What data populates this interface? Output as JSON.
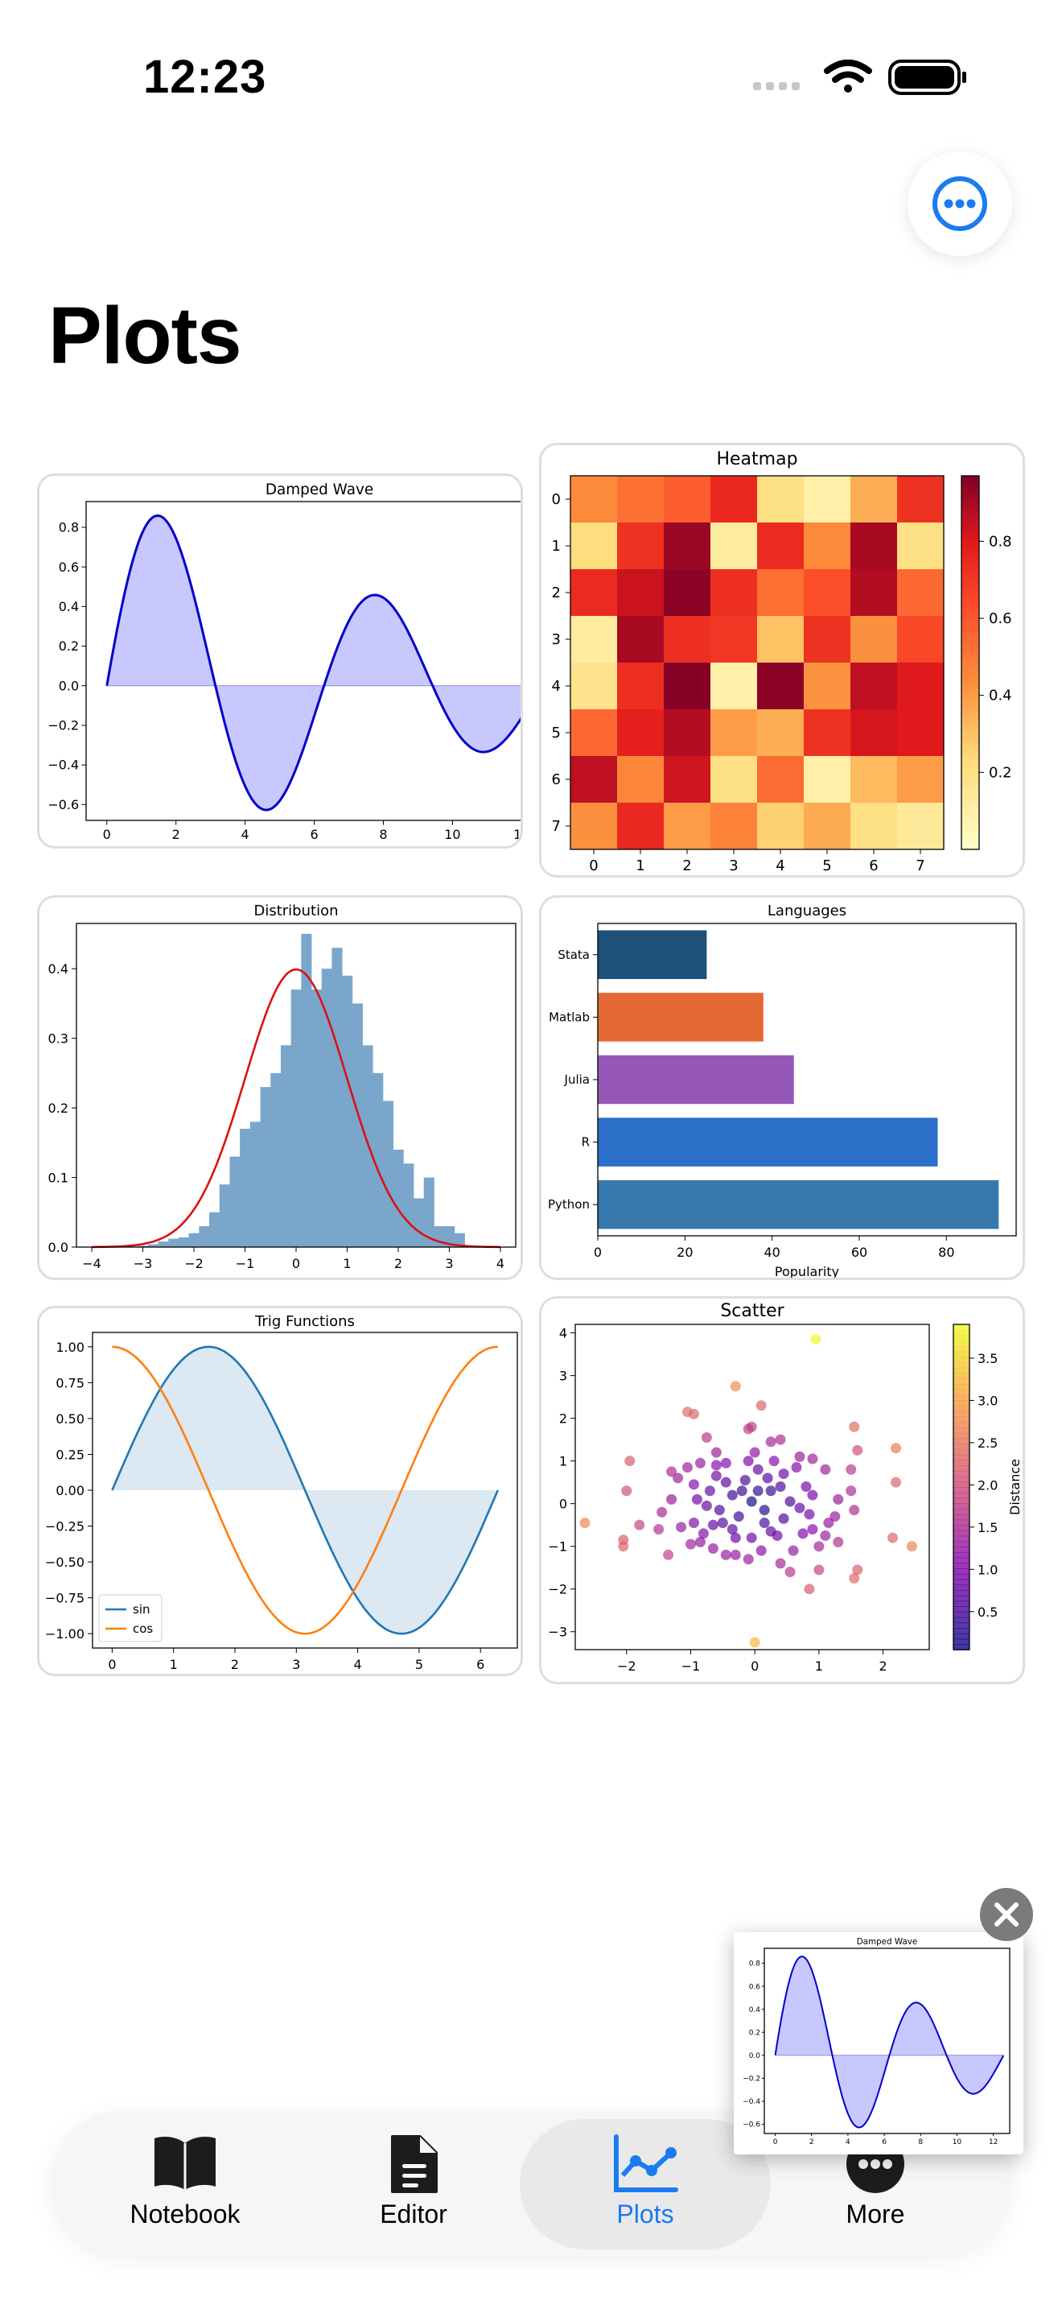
{
  "status_bar": {
    "time": "12:23"
  },
  "page": {
    "title": "Plots"
  },
  "tab_bar": {
    "items": [
      {
        "label": "Notebook",
        "icon": "book-icon",
        "active": false
      },
      {
        "label": "Editor",
        "icon": "document-icon",
        "active": false
      },
      {
        "label": "Plots",
        "icon": "chart-line-icon",
        "active": true
      },
      {
        "label": "More",
        "icon": "ellipsis-circle-icon",
        "active": false
      }
    ],
    "accent_color": "#1a7cf0"
  },
  "chart_data": [
    {
      "id": "damped",
      "type": "area",
      "title": "Damped Wave",
      "function": "sin(x)*exp(-0.1x)",
      "xlim": [
        -0.6,
        12.9
      ],
      "ylim": [
        -0.68,
        0.93
      ],
      "xticks": [
        0,
        2,
        4,
        6,
        8,
        10,
        12
      ],
      "yticks": [
        -0.6,
        -0.4,
        -0.2,
        0.0,
        0.2,
        0.4,
        0.6,
        0.8
      ],
      "ytick_labels": [
        "−0.6",
        "−0.4",
        "−0.2",
        "0.0",
        "0.2",
        "0.4",
        "0.6",
        "0.8"
      ],
      "line_color": "#0000cc",
      "fill_color": "#c8c8ff"
    },
    {
      "id": "heatmap",
      "type": "heatmap",
      "title": "Heatmap",
      "xticks": [
        "0",
        "1",
        "2",
        "3",
        "4",
        "5",
        "6",
        "7"
      ],
      "yticks": [
        "0",
        "1",
        "2",
        "3",
        "4",
        "5",
        "6",
        "7"
      ],
      "colorbar_ticks": [
        "0.2",
        "0.4",
        "0.6",
        "0.8"
      ],
      "colorbar_values": [
        0.2,
        0.4,
        0.6,
        0.8
      ],
      "vmin": 0.0,
      "vmax": 0.97,
      "values": [
        [
          0.45,
          0.52,
          0.58,
          0.75,
          0.2,
          0.1,
          0.35,
          0.72
        ],
        [
          0.22,
          0.72,
          0.92,
          0.12,
          0.74,
          0.45,
          0.9,
          0.2
        ],
        [
          0.74,
          0.84,
          0.95,
          0.73,
          0.53,
          0.63,
          0.88,
          0.55
        ],
        [
          0.12,
          0.9,
          0.73,
          0.7,
          0.3,
          0.72,
          0.43,
          0.65
        ],
        [
          0.18,
          0.73,
          0.96,
          0.1,
          0.95,
          0.42,
          0.86,
          0.8
        ],
        [
          0.55,
          0.78,
          0.88,
          0.4,
          0.35,
          0.72,
          0.82,
          0.8
        ],
        [
          0.86,
          0.46,
          0.83,
          0.2,
          0.54,
          0.1,
          0.32,
          0.4
        ],
        [
          0.43,
          0.75,
          0.4,
          0.47,
          0.26,
          0.36,
          0.2,
          0.14
        ]
      ]
    },
    {
      "id": "distribution",
      "type": "bar",
      "title": "Distribution",
      "xlim": [
        -4.3,
        4.3
      ],
      "ylim": [
        0,
        0.465
      ],
      "xticks": [
        -4,
        -3,
        -2,
        -1,
        0,
        1,
        2,
        3,
        4
      ],
      "xtick_labels": [
        "−4",
        "−3",
        "−2",
        "−1",
        "0",
        "1",
        "2",
        "3",
        "4"
      ],
      "yticks": [
        0.0,
        0.1,
        0.2,
        0.3,
        0.4
      ],
      "bin_start": -3.1,
      "bin_width": 0.2,
      "values": [
        0.002,
        0.004,
        0.008,
        0.012,
        0.014,
        0.02,
        0.03,
        0.05,
        0.09,
        0.13,
        0.17,
        0.18,
        0.23,
        0.25,
        0.29,
        0.37,
        0.45,
        0.37,
        0.4,
        0.43,
        0.39,
        0.35,
        0.29,
        0.25,
        0.21,
        0.14,
        0.12,
        0.07,
        0.1,
        0.03,
        0.03,
        0.02
      ],
      "hist_color": "#7aa6cb",
      "curve": {
        "type": "normal_pdf",
        "mean": 0,
        "std": 1,
        "color": "#dd1111"
      }
    },
    {
      "id": "languages",
      "type": "bar",
      "title": "Languages",
      "orientation": "horizontal",
      "xlabel": "Popularity",
      "xlim": [
        0,
        96
      ],
      "xticks": [
        0,
        20,
        40,
        60,
        80
      ],
      "categories": [
        "Python",
        "R",
        "Julia",
        "Matlab",
        "Stata"
      ],
      "values": [
        92,
        78,
        45,
        38,
        25
      ],
      "colors": [
        "#3778ad",
        "#2b6fc9",
        "#9558b7",
        "#e46a35",
        "#1e5179"
      ]
    },
    {
      "id": "trig",
      "type": "line",
      "title": "Trig Functions",
      "xlim": [
        -0.32,
        6.6
      ],
      "ylim": [
        -1.1,
        1.1
      ],
      "xticks": [
        0,
        1,
        2,
        3,
        4,
        5,
        6
      ],
      "yticks": [
        -1.0,
        -0.75,
        -0.5,
        -0.25,
        0.0,
        0.25,
        0.5,
        0.75,
        1.0
      ],
      "ytick_labels": [
        "−1.00",
        "−0.75",
        "−0.50",
        "−0.25",
        "0.00",
        "0.25",
        "0.50",
        "0.75",
        "1.00"
      ],
      "series": [
        {
          "name": "sin",
          "function": "sin",
          "color": "#1f77b4",
          "fill": "#dce8f2"
        },
        {
          "name": "cos",
          "function": "cos",
          "color": "#ff7f0e"
        }
      ],
      "legend_position": "lower-left"
    },
    {
      "id": "scatter",
      "type": "scatter",
      "title": "Scatter",
      "colorbar_label": "Distance",
      "xlim": [
        -2.8,
        2.72
      ],
      "ylim": [
        -3.42,
        4.2
      ],
      "xticks": [
        -2,
        -1,
        0,
        1,
        2
      ],
      "xtick_labels": [
        "−2",
        "−1",
        "0",
        "1",
        "2"
      ],
      "yticks": [
        -3,
        -2,
        -1,
        0,
        1,
        2,
        3,
        4
      ],
      "ytick_labels": [
        "−3",
        "−2",
        "−1",
        "0",
        "1",
        "2",
        "3",
        "4"
      ],
      "colorbar_ticks": [
        "0.5",
        "1.0",
        "1.5",
        "2.0",
        "2.5",
        "3.0",
        "3.5"
      ],
      "colorbar_values": [
        0.5,
        1.0,
        1.5,
        2.0,
        2.5,
        3.0,
        3.5
      ],
      "vmin": 0.05,
      "vmax": 3.9,
      "points": [
        [
          0.95,
          3.85
        ],
        [
          0.0,
          -3.25
        ],
        [
          -2.65,
          -0.45
        ],
        [
          2.45,
          -1.0
        ],
        [
          2.15,
          -0.8
        ],
        [
          -1.95,
          1.0
        ],
        [
          -2.05,
          -0.85
        ],
        [
          -2.05,
          -1.0
        ],
        [
          -1.8,
          -0.5
        ],
        [
          -2.0,
          0.3
        ],
        [
          1.55,
          1.8
        ],
        [
          1.6,
          1.25
        ],
        [
          1.5,
          0.8
        ],
        [
          2.2,
          1.3
        ],
        [
          2.2,
          0.5
        ],
        [
          1.55,
          -0.15
        ],
        [
          1.6,
          -1.55
        ],
        [
          1.55,
          -1.75
        ],
        [
          1.0,
          -1.55
        ],
        [
          0.85,
          -2.0
        ],
        [
          1.0,
          -1.0
        ],
        [
          1.25,
          -0.3
        ],
        [
          1.5,
          0.3
        ],
        [
          0.1,
          2.3
        ],
        [
          -0.3,
          2.75
        ],
        [
          -0.95,
          2.1
        ],
        [
          -1.05,
          2.15
        ],
        [
          -0.1,
          1.75
        ],
        [
          -0.05,
          1.8
        ],
        [
          0.4,
          1.5
        ],
        [
          0.7,
          1.1
        ],
        [
          -0.75,
          1.55
        ],
        [
          -0.6,
          1.2
        ],
        [
          -1.3,
          0.75
        ],
        [
          -1.2,
          0.6
        ],
        [
          -1.05,
          0.85
        ],
        [
          -0.85,
          0.95
        ],
        [
          -0.6,
          0.9
        ],
        [
          -0.45,
          0.5
        ],
        [
          -0.7,
          0.3
        ],
        [
          -0.95,
          0.45
        ],
        [
          -1.3,
          0.1
        ],
        [
          -1.45,
          -0.2
        ],
        [
          -1.5,
          -0.6
        ],
        [
          -1.35,
          -1.2
        ],
        [
          -0.85,
          -0.9
        ],
        [
          -0.95,
          -0.45
        ],
        [
          -0.65,
          -0.5
        ],
        [
          -0.55,
          -0.15
        ],
        [
          -0.35,
          0.2
        ],
        [
          -0.15,
          0.55
        ],
        [
          0.05,
          0.8
        ],
        [
          0.25,
          0.3
        ],
        [
          0.45,
          0.7
        ],
        [
          0.65,
          0.85
        ],
        [
          0.8,
          0.4
        ],
        [
          0.9,
          0.2
        ],
        [
          0.7,
          -0.1
        ],
        [
          0.45,
          -0.35
        ],
        [
          0.25,
          -0.65
        ],
        [
          -0.05,
          -0.8
        ],
        [
          -0.3,
          -0.8
        ],
        [
          -0.45,
          -1.2
        ],
        [
          -0.3,
          -1.2
        ],
        [
          0.1,
          -1.1
        ],
        [
          0.4,
          -1.4
        ],
        [
          0.6,
          -1.1
        ],
        [
          0.9,
          -0.6
        ],
        [
          1.15,
          -0.45
        ],
        [
          1.3,
          0.1
        ],
        [
          1.1,
          0.8
        ],
        [
          0.9,
          1.05
        ],
        [
          0.3,
          1.0
        ],
        [
          0.05,
          0.3
        ],
        [
          -0.05,
          0.05
        ],
        [
          0.15,
          -0.15
        ],
        [
          -0.25,
          -0.3
        ],
        [
          -0.5,
          -0.45
        ],
        [
          -0.75,
          -0.05
        ],
        [
          0.55,
          0.05
        ],
        [
          0.2,
          0.6
        ],
        [
          -0.1,
          1.0
        ],
        [
          -0.6,
          0.65
        ],
        [
          -0.9,
          0.1
        ],
        [
          -1.15,
          -0.55
        ],
        [
          -1.0,
          -0.95
        ],
        [
          -0.65,
          -1.05
        ],
        [
          0.35,
          -0.75
        ],
        [
          0.75,
          -0.7
        ],
        [
          1.1,
          -0.75
        ],
        [
          0.55,
          -1.6
        ],
        [
          -0.1,
          -1.3
        ],
        [
          0.25,
          1.45
        ],
        [
          0.0,
          1.2
        ],
        [
          -0.45,
          0.95
        ],
        [
          -0.2,
          0.3
        ],
        [
          0.4,
          0.4
        ],
        [
          -0.35,
          -0.6
        ],
        [
          0.15,
          -0.45
        ],
        [
          -0.8,
          -0.7
        ],
        [
          1.3,
          -0.9
        ],
        [
          0.85,
          -0.25
        ]
      ]
    }
  ],
  "pip": {
    "chart_ref": "damped",
    "title": "Damped Wave"
  }
}
